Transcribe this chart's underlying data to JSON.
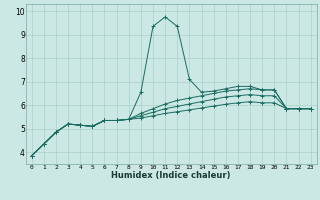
{
  "xlabel": "Humidex (Indice chaleur)",
  "bg_color": "#cce8e4",
  "grid_color": "#aad0cb",
  "line_color": "#1a6b60",
  "spine_color": "#7aaba4",
  "xlim": [
    -0.5,
    23.5
  ],
  "ylim": [
    3.5,
    10.3
  ],
  "xticks": [
    0,
    1,
    2,
    3,
    4,
    5,
    6,
    7,
    8,
    9,
    10,
    11,
    12,
    13,
    14,
    15,
    16,
    17,
    18,
    19,
    20,
    21,
    22,
    23
  ],
  "yticks": [
    4,
    5,
    6,
    7,
    8,
    9,
    10
  ],
  "series": [
    [
      3.85,
      4.35,
      4.85,
      5.2,
      5.15,
      5.1,
      5.35,
      5.35,
      5.4,
      6.55,
      9.35,
      9.75,
      9.35,
      7.1,
      6.55,
      6.6,
      6.7,
      6.8,
      6.8,
      6.65,
      6.65,
      5.85,
      5.85,
      5.85
    ],
    [
      3.85,
      4.35,
      4.85,
      5.2,
      5.15,
      5.1,
      5.35,
      5.35,
      5.4,
      5.65,
      5.85,
      6.05,
      6.2,
      6.3,
      6.4,
      6.5,
      6.6,
      6.65,
      6.7,
      6.65,
      6.65,
      5.85,
      5.85,
      5.85
    ],
    [
      3.85,
      4.35,
      4.85,
      5.2,
      5.15,
      5.1,
      5.35,
      5.35,
      5.4,
      5.55,
      5.7,
      5.85,
      5.95,
      6.05,
      6.15,
      6.25,
      6.35,
      6.4,
      6.45,
      6.4,
      6.4,
      5.85,
      5.85,
      5.85
    ],
    [
      3.85,
      4.35,
      4.85,
      5.2,
      5.15,
      5.1,
      5.35,
      5.35,
      5.4,
      5.45,
      5.55,
      5.65,
      5.72,
      5.8,
      5.88,
      5.96,
      6.04,
      6.1,
      6.15,
      6.1,
      6.1,
      5.85,
      5.85,
      5.85
    ]
  ]
}
